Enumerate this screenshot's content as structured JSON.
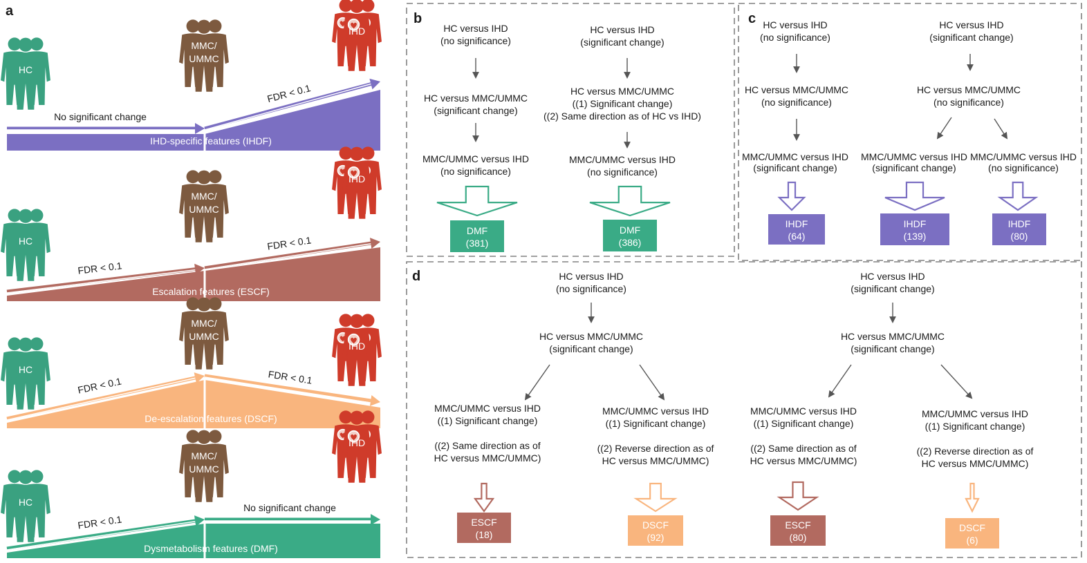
{
  "panel_a": {
    "label": "a",
    "rows": [
      {
        "color": "#7b6fc2",
        "figure_labels": {
          "hc": "HC",
          "mmc": "MMC/\nUMMC",
          "ihd": "IHD"
        },
        "arrow1_text": "No significant change",
        "arrow2_text": "FDR < 0.1",
        "band_label": "IHD-specific features (IHDF)"
      },
      {
        "color": "#b26a60",
        "figure_labels": {
          "hc": "HC",
          "mmc": "MMC/\nUMMC",
          "ihd": "IHD"
        },
        "arrow1_text": "FDR < 0.1",
        "arrow2_text": "FDR < 0.1",
        "band_label": "Escalation features (ESCF)"
      },
      {
        "color": "#f9b57e",
        "figure_labels": {
          "hc": "HC",
          "mmc": "MMC/\nUMMC",
          "ihd": "IHD"
        },
        "arrow1_text": "FDR < 0.1",
        "arrow2_text": "FDR < 0.1",
        "band_label": "De-escalation features (DSCF)"
      },
      {
        "color": "#3aab86",
        "figure_labels": {
          "hc": "HC",
          "mmc": "MMC/\nUMMC",
          "ihd": "IHD"
        },
        "arrow1_text": "FDR < 0.1",
        "arrow2_text": "No significant change",
        "band_label": "Dysmetabolism features (DMF)"
      }
    ]
  },
  "panel_b": {
    "label": "b",
    "left": {
      "step1": [
        "HC versus IHD",
        "(no significance)"
      ],
      "step2": [
        "HC versus MMC/UMMC",
        "(significant change)"
      ],
      "step3": [
        "MMC/UMMC versus IHD",
        "(no significance)"
      ],
      "result": [
        "DMF",
        "(381)"
      ]
    },
    "right": {
      "step1": [
        "HC versus IHD",
        "(significant change)"
      ],
      "step2": [
        "HC versus MMC/UMMC",
        "((1) Significant change)",
        "((2) Same direction as of HC vs IHD)"
      ],
      "step3": [
        "MMC/UMMC versus IHD",
        "(no significance)"
      ],
      "result": [
        "DMF",
        "(386)"
      ]
    },
    "color": "#3aab86"
  },
  "panel_c": {
    "label": "c",
    "color": "#7b6fc2",
    "left": {
      "step1": [
        "HC versus IHD",
        "(no significance)"
      ],
      "step2": [
        "HC versus MMC/UMMC",
        "(no significance)"
      ],
      "step3": [
        "MMC/UMMC versus IHD",
        "(significant change)"
      ],
      "result": [
        "IHDF",
        "(64)"
      ]
    },
    "right": {
      "step1": [
        "HC versus IHD",
        "(significant change)"
      ],
      "step2": [
        "HC versus MMC/UMMC",
        "(no significance)"
      ],
      "branch_a": [
        "MMC/UMMC versus IHD",
        "(significant change)"
      ],
      "branch_b": [
        "MMC/UMMC versus IHD",
        "(no significance)"
      ],
      "result_a": [
        "IHDF",
        "(139)"
      ],
      "result_b": [
        "IHDF",
        "(80)"
      ]
    }
  },
  "panel_d": {
    "label": "d",
    "left": {
      "step1": [
        "HC versus IHD",
        "(no significance)"
      ],
      "step2": [
        "HC versus MMC/UMMC",
        "(significant change)"
      ],
      "branch_a": [
        "MMC/UMMC versus IHD",
        "((1) Significant change)",
        "",
        "((2) Same direction as of",
        "HC versus MMC/UMMC)"
      ],
      "branch_b": [
        "MMC/UMMC versus IHD",
        "((1) Significant change)",
        "",
        "((2) Reverse direction as of",
        "HC versus MMC/UMMC)"
      ],
      "result_a": [
        "ESCF",
        "(18)"
      ],
      "result_b": [
        "DSCF",
        "(92)"
      ]
    },
    "right": {
      "step1": [
        "HC versus IHD",
        "(significant change)"
      ],
      "step2": [
        "HC versus MMC/UMMC",
        "(significant change)"
      ],
      "branch_a": [
        "MMC/UMMC versus IHD",
        "((1) Significant change)",
        "",
        "((2) Same direction as of",
        "HC versus MMC/UMMC)"
      ],
      "branch_b": [
        "MMC/UMMC versus IHD",
        "((1) Significant change)",
        "",
        "((2) Reverse direction as of",
        "HC versus MMC/UMMC)"
      ],
      "result_a": [
        "ESCF",
        "(80)"
      ],
      "result_b": [
        "DSCF",
        "(6)"
      ]
    },
    "escf_color": "#b26a60",
    "dscf_color": "#f9b57e"
  },
  "figure_colors": {
    "hc": "#3aa180",
    "mmc": "#7d5a3f",
    "ihd": "#cf3b2a"
  }
}
